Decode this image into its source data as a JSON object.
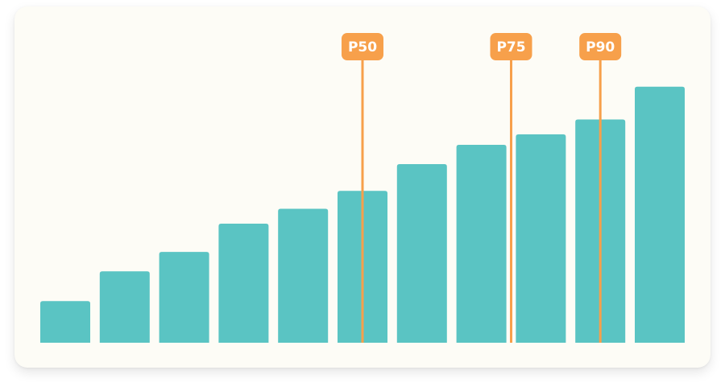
{
  "colors": {
    "bar": "#5ac4c3",
    "marker": "#f7a04b",
    "card_background": "#fdfcf6"
  },
  "chart_data": {
    "type": "bar",
    "title": "",
    "xlabel": "",
    "ylabel": "",
    "values": [
      14,
      24,
      30.5,
      40,
      45,
      51,
      60,
      66.5,
      70,
      75,
      86
    ],
    "ylim": [
      0,
      100
    ],
    "grid": false,
    "legend": "none",
    "markers": [
      {
        "label": "P50",
        "position": 5.5
      },
      {
        "label": "P75",
        "position": 8.0
      },
      {
        "label": "P90",
        "position": 9.5
      }
    ]
  }
}
